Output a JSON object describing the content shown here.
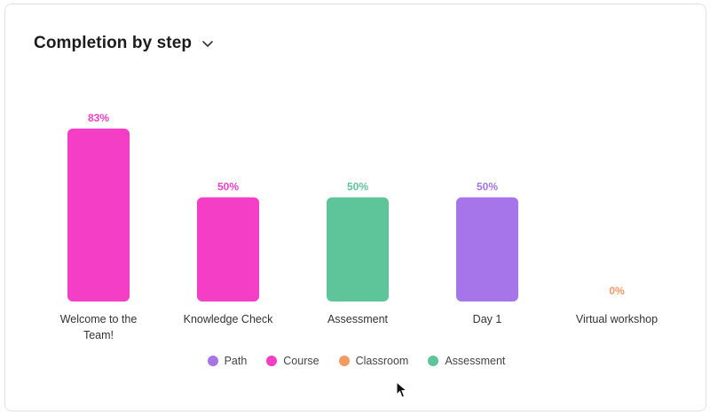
{
  "header": {
    "title": "Completion by step"
  },
  "colors": {
    "path": "#a675ea",
    "course": "#f53ec6",
    "classroom": "#f39a62",
    "assessment": "#5ec49a"
  },
  "legend": [
    {
      "label": "Path",
      "type": "path"
    },
    {
      "label": "Course",
      "type": "course"
    },
    {
      "label": "Classroom",
      "type": "classroom"
    },
    {
      "label": "Assessment",
      "type": "assessment"
    }
  ],
  "chart_data": {
    "type": "bar",
    "categories": [
      [
        "Welcome to the",
        "Team!"
      ],
      [
        "Knowledge Check"
      ],
      [
        "Assessment"
      ],
      [
        "Day 1"
      ],
      [
        "Virtual workshop"
      ]
    ],
    "values": [
      83,
      50,
      50,
      50,
      0
    ],
    "value_labels": [
      "83%",
      "50%",
      "50%",
      "50%",
      "0%"
    ],
    "step_types": [
      "course",
      "course",
      "assessment",
      "path",
      "classroom"
    ],
    "ylim": [
      0,
      100
    ],
    "grid": false,
    "legend_position": "bottom"
  }
}
